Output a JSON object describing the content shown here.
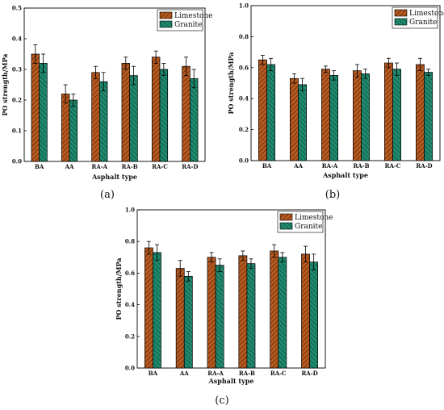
{
  "chart_data": [
    {
      "type": "bar",
      "panel_label": "(a)",
      "categories": [
        "BA",
        "AA",
        "RA-A",
        "RA-B",
        "RA-C",
        "RA-D"
      ],
      "series": [
        {
          "name": "Limestone",
          "color": "#b85a1f",
          "values": [
            0.35,
            0.22,
            0.29,
            0.32,
            0.34,
            0.31
          ],
          "errors": [
            0.03,
            0.03,
            0.02,
            0.02,
            0.02,
            0.03
          ]
        },
        {
          "name": "Granite",
          "color": "#1f8a6e",
          "values": [
            0.32,
            0.2,
            0.26,
            0.28,
            0.3,
            0.27
          ],
          "errors": [
            0.03,
            0.02,
            0.03,
            0.03,
            0.02,
            0.03
          ]
        }
      ],
      "xlabel": "Asphalt type",
      "ylabel": "PO strength/MPa",
      "ylim": [
        0.0,
        0.5
      ],
      "yticks": [
        "0.0",
        "0.1",
        "0.2",
        "0.3",
        "0.4",
        "0.5"
      ],
      "legend_position": "top-right",
      "grid": false
    },
    {
      "type": "bar",
      "panel_label": "(b)",
      "categories": [
        "BA",
        "AA",
        "RA-A",
        "RA-B",
        "RA-C",
        "RA-D"
      ],
      "series": [
        {
          "name": "Limestone",
          "color": "#b85a1f",
          "values": [
            0.65,
            0.53,
            0.59,
            0.58,
            0.63,
            0.62
          ],
          "errors": [
            0.03,
            0.03,
            0.02,
            0.04,
            0.03,
            0.04
          ]
        },
        {
          "name": "Granite",
          "color": "#1f8a6e",
          "values": [
            0.62,
            0.49,
            0.55,
            0.56,
            0.59,
            0.57
          ],
          "errors": [
            0.04,
            0.04,
            0.03,
            0.03,
            0.04,
            0.02
          ]
        }
      ],
      "xlabel": "Asphalt type",
      "ylabel": "PO strength/MPa",
      "ylim": [
        0.0,
        1.0
      ],
      "yticks": [
        "0.0",
        "0.2",
        "0.4",
        "0.6",
        "0.8",
        "1.0"
      ],
      "legend_position": "top-right",
      "grid": false
    },
    {
      "type": "bar",
      "panel_label": "(c)",
      "categories": [
        "BA",
        "AA",
        "RA-A",
        "RA-B",
        "RA-C",
        "RA-D"
      ],
      "series": [
        {
          "name": "Limestone",
          "color": "#b85a1f",
          "values": [
            0.76,
            0.63,
            0.7,
            0.71,
            0.74,
            0.72
          ],
          "errors": [
            0.04,
            0.05,
            0.03,
            0.03,
            0.04,
            0.05
          ]
        },
        {
          "name": "Granite",
          "color": "#1f8a6e",
          "values": [
            0.73,
            0.58,
            0.65,
            0.66,
            0.7,
            0.67
          ],
          "errors": [
            0.05,
            0.03,
            0.04,
            0.03,
            0.03,
            0.05
          ]
        }
      ],
      "xlabel": "Asphalt type",
      "ylabel": "PO strength/MPa",
      "ylim": [
        0.0,
        1.0
      ],
      "yticks": [
        "0.0",
        "0.2",
        "0.4",
        "0.6",
        "0.8",
        "1.0"
      ],
      "legend_position": "top-right",
      "grid": false
    }
  ]
}
